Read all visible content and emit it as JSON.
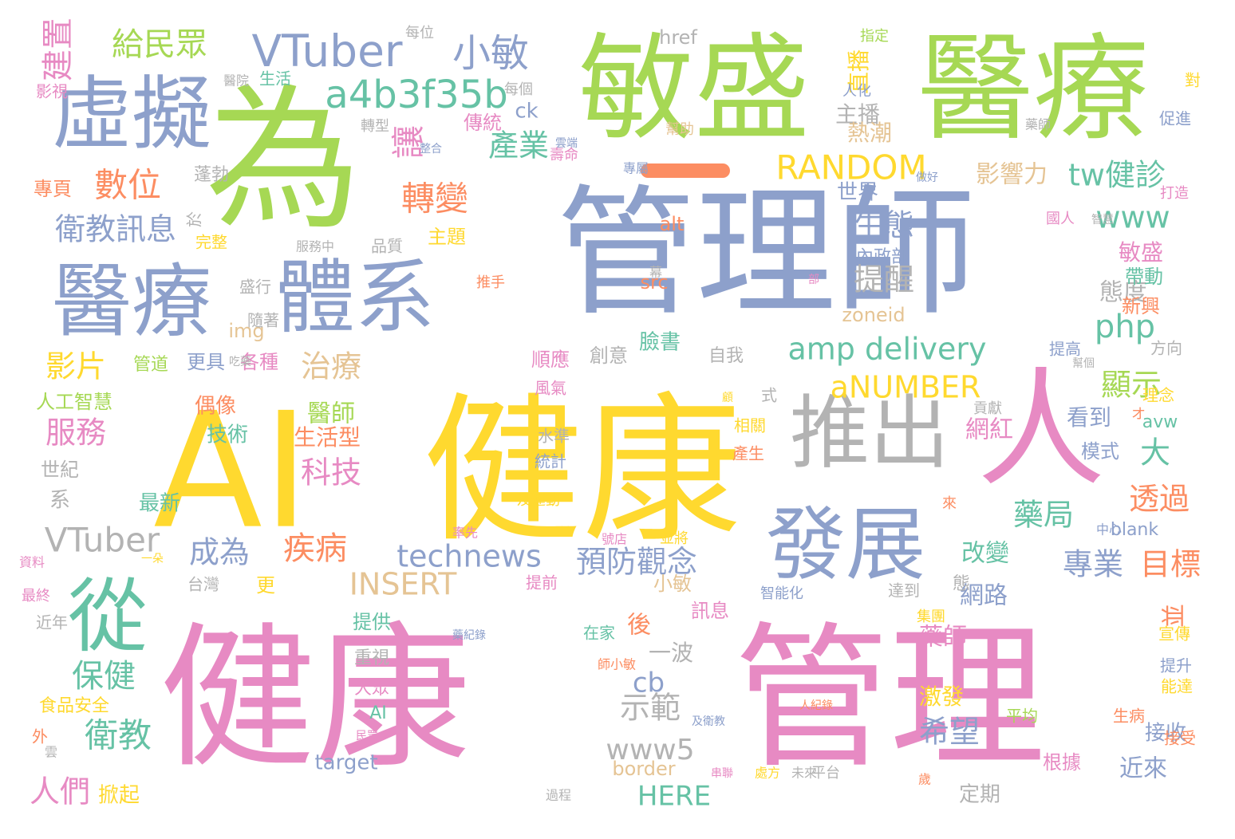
{
  "palette": {
    "pink": "#e78ac3",
    "yellow": "#ffd92f",
    "green": "#a6d854",
    "blue": "#8da0cb",
    "teal": "#66c2a5",
    "orange": "#fc8d62",
    "gray": "#b3b3b3",
    "tan": "#e5c494"
  },
  "words": [
    {
      "text": "健康",
      "color": "pink"
    },
    {
      "text": "管理",
      "color": "pink"
    },
    {
      "text": "AI",
      "color": "yellow"
    },
    {
      "text": "健康",
      "color": "yellow"
    },
    {
      "text": "管理師",
      "color": "blue"
    },
    {
      "text": "為",
      "color": "green"
    },
    {
      "text": "敏盛",
      "color": "green"
    },
    {
      "text": "醫療",
      "color": "green"
    },
    {
      "text": "人",
      "color": "pink"
    },
    {
      "text": "虛擬",
      "color": "blue"
    },
    {
      "text": "醫療",
      "color": "blue"
    },
    {
      "text": "體系",
      "color": "blue"
    },
    {
      "text": "推出",
      "color": "gray"
    },
    {
      "text": "發展",
      "color": "blue"
    },
    {
      "text": "從",
      "color": "teal"
    },
    {
      "text": "VTuber",
      "color": "blue"
    },
    {
      "text": "小敏",
      "color": "blue"
    },
    {
      "text": "給民眾",
      "color": "green"
    },
    {
      "text": "建置",
      "color": "pink"
    },
    {
      "text": "a4b3f35b",
      "color": "teal"
    },
    {
      "text": "數位",
      "color": "orange"
    },
    {
      "text": "衛教訊息",
      "color": "blue"
    },
    {
      "text": "讓",
      "color": "pink"
    },
    {
      "text": "產業",
      "color": "teal"
    },
    {
      "text": "轉變",
      "color": "orange"
    },
    {
      "text": "RANDOM",
      "color": "yellow"
    },
    {
      "text": "tw健診",
      "color": "teal"
    },
    {
      "text": "www",
      "color": "teal"
    },
    {
      "text": "amp delivery",
      "color": "teal"
    },
    {
      "text": "php",
      "color": "teal"
    },
    {
      "text": "生態",
      "color": "blue"
    },
    {
      "text": "提醒",
      "color": "gray"
    },
    {
      "text": "影響力",
      "color": "tan"
    },
    {
      "text": "直播",
      "color": "yellow"
    },
    {
      "text": "主播",
      "color": "gray"
    },
    {
      "text": "熱潮",
      "color": "tan"
    },
    {
      "text": "世界",
      "color": "blue"
    },
    {
      "text": "aNUMBER",
      "color": "yellow"
    },
    {
      "text": "顯示",
      "color": "green"
    },
    {
      "text": "大",
      "color": "teal"
    },
    {
      "text": "態度",
      "color": "gray"
    },
    {
      "text": "影片",
      "color": "yellow"
    },
    {
      "text": "服務",
      "color": "pink"
    },
    {
      "text": "治療",
      "color": "tan"
    },
    {
      "text": "醫師",
      "color": "green"
    },
    {
      "text": "科技",
      "color": "pink"
    },
    {
      "text": "疾病",
      "color": "orange"
    },
    {
      "text": "technews",
      "color": "blue"
    },
    {
      "text": "預防觀念",
      "color": "blue"
    },
    {
      "text": "成為",
      "color": "blue"
    },
    {
      "text": "INSERT",
      "color": "tan"
    },
    {
      "text": "VTuber",
      "color": "gray"
    },
    {
      "text": "專業",
      "color": "blue"
    },
    {
      "text": "目標",
      "color": "orange"
    },
    {
      "text": "藥局",
      "color": "teal"
    },
    {
      "text": "透過",
      "color": "orange"
    },
    {
      "text": "網紅",
      "color": "pink"
    },
    {
      "text": "改變",
      "color": "teal"
    },
    {
      "text": "網路",
      "color": "blue"
    },
    {
      "text": "衛教",
      "color": "teal"
    },
    {
      "text": "保健",
      "color": "teal"
    },
    {
      "text": "人們",
      "color": "pink"
    },
    {
      "text": "示範",
      "color": "gray"
    },
    {
      "text": "www5",
      "color": "gray"
    },
    {
      "text": "HERE",
      "color": "teal"
    },
    {
      "text": "希望",
      "color": "blue"
    },
    {
      "text": "藥師",
      "color": "pink"
    },
    {
      "text": "並",
      "color": "orange"
    },
    {
      "text": "cb",
      "color": "blue"
    },
    {
      "text": "後",
      "color": "orange"
    },
    {
      "text": "一波",
      "color": "gray"
    },
    {
      "text": "近來",
      "color": "blue"
    },
    {
      "text": "激發",
      "color": "yellow"
    },
    {
      "text": "接收",
      "color": "blue"
    },
    {
      "text": "敏盛",
      "color": "pink"
    },
    {
      "text": "帶動",
      "color": "teal"
    },
    {
      "text": "新興",
      "color": "orange"
    },
    {
      "text": "看到",
      "color": "blue"
    },
    {
      "text": "模式",
      "color": "blue"
    },
    {
      "text": "href",
      "color": "gray"
    },
    {
      "text": "ck",
      "color": "blue"
    },
    {
      "text": "傳統",
      "color": "pink"
    },
    {
      "text": "主題",
      "color": "yellow"
    },
    {
      "text": "alt",
      "color": "orange"
    },
    {
      "text": "src",
      "color": "orange"
    },
    {
      "text": "zoneid",
      "color": "tan"
    },
    {
      "text": "img",
      "color": "tan"
    },
    {
      "text": "臉書",
      "color": "teal"
    },
    {
      "text": "創意",
      "color": "gray"
    },
    {
      "text": "順應",
      "color": "pink"
    },
    {
      "text": "自我",
      "color": "gray"
    },
    {
      "text": "偶像",
      "color": "orange"
    },
    {
      "text": "技術",
      "color": "teal"
    },
    {
      "text": "生活型",
      "color": "orange"
    },
    {
      "text": "世紀",
      "color": "gray"
    },
    {
      "text": "系",
      "color": "gray"
    },
    {
      "text": "最新",
      "color": "teal"
    },
    {
      "text": "更具",
      "color": "blue"
    },
    {
      "text": "各種",
      "color": "pink"
    },
    {
      "text": "更",
      "color": "yellow"
    },
    {
      "text": "小敏",
      "color": "tan"
    },
    {
      "text": "訊息",
      "color": "pink"
    },
    {
      "text": "提供",
      "color": "teal"
    },
    {
      "text": "重視",
      "color": "gray"
    },
    {
      "text": "大眾",
      "color": "pink"
    },
    {
      "text": "target",
      "color": "blue"
    },
    {
      "text": "border",
      "color": "tan"
    },
    {
      "text": "定期",
      "color": "gray"
    },
    {
      "text": "根據",
      "color": "pink"
    },
    {
      "text": "掀起",
      "color": "yellow"
    },
    {
      "text": "食品安全",
      "color": "yellow"
    },
    {
      "text": "近年",
      "color": "gray"
    },
    {
      "text": "台灣",
      "color": "gray"
    },
    {
      "text": "人工智慧",
      "color": "green"
    },
    {
      "text": "管道",
      "color": "green"
    },
    {
      "text": "影視",
      "color": "pink"
    },
    {
      "text": "專頁",
      "color": "orange"
    },
    {
      "text": "蓬勃",
      "color": "gray"
    },
    {
      "text": "於",
      "color": "gray"
    },
    {
      "text": "完整",
      "color": "yellow"
    },
    {
      "text": "品質",
      "color": "gray"
    },
    {
      "text": "生活",
      "color": "teal"
    },
    {
      "text": "內政部",
      "color": "blue"
    },
    {
      "text": "blank",
      "color": "blue"
    },
    {
      "text": "avw",
      "color": "teal"
    },
    {
      "text": "態",
      "color": "gray"
    },
    {
      "text": "達到",
      "color": "gray"
    },
    {
      "text": "AI",
      "color": "teal"
    },
    {
      "text": "在家",
      "color": "teal"
    },
    {
      "text": "提前",
      "color": "pink"
    },
    {
      "text": "水準",
      "color": "gray"
    },
    {
      "text": "統計",
      "color": "blue"
    },
    {
      "text": "風氣",
      "color": "pink"
    },
    {
      "text": "相關",
      "color": "yellow"
    },
    {
      "text": "產生",
      "color": "orange"
    },
    {
      "text": "平均",
      "color": "green"
    },
    {
      "text": "生病",
      "color": "orange"
    },
    {
      "text": "提升",
      "color": "blue"
    },
    {
      "text": "能達",
      "color": "yellow"
    },
    {
      "text": "接受",
      "color": "orange"
    },
    {
      "text": "宣傳",
      "color": "yellow"
    },
    {
      "text": "提高",
      "color": "blue"
    },
    {
      "text": "方向",
      "color": "gray"
    },
    {
      "text": "理念",
      "color": "yellow"
    },
    {
      "text": "促進",
      "color": "blue"
    },
    {
      "text": "對",
      "color": "yellow"
    },
    {
      "text": "指定",
      "color": "green"
    },
    {
      "text": "每位",
      "color": "gray"
    },
    {
      "text": "每個",
      "color": "gray"
    },
    {
      "text": "國人",
      "color": "pink"
    },
    {
      "text": "打造",
      "color": "pink"
    },
    {
      "text": "人化",
      "color": "blue"
    },
    {
      "text": "轉型",
      "color": "gray"
    },
    {
      "text": "壽命",
      "color": "pink"
    },
    {
      "text": "幫助",
      "color": "tan"
    },
    {
      "text": "式",
      "color": "gray"
    },
    {
      "text": "推手",
      "color": "orange"
    },
    {
      "text": "盛行",
      "color": "gray"
    },
    {
      "text": "隨著",
      "color": "gray"
    },
    {
      "text": "服務中",
      "color": "gray"
    },
    {
      "text": "醫院",
      "color": "gray"
    },
    {
      "text": "貢獻",
      "color": "gray"
    },
    {
      "text": "集團",
      "color": "yellow"
    },
    {
      "text": "智能化",
      "color": "blue"
    },
    {
      "text": "及運動",
      "color": "yellow"
    },
    {
      "text": "並將",
      "color": "yellow"
    },
    {
      "text": "號店",
      "color": "pink"
    },
    {
      "text": "最終",
      "color": "pink"
    },
    {
      "text": "師小敏",
      "color": "orange"
    },
    {
      "text": "平台",
      "color": "gray"
    },
    {
      "text": "未來",
      "color": "gray"
    },
    {
      "text": "處方",
      "color": "yellow"
    },
    {
      "text": "民眾",
      "color": "pink"
    },
    {
      "text": "過程",
      "color": "gray"
    },
    {
      "text": "外",
      "color": "orange"
    },
    {
      "text": "資料",
      "color": "pink"
    },
    {
      "text": "來",
      "color": "orange"
    },
    {
      "text": "中心",
      "color": "blue"
    },
    {
      "text": "歲",
      "color": "orange"
    },
    {
      "text": "雲",
      "color": "gray"
    },
    {
      "text": "一朵",
      "color": "yellow"
    },
    {
      "text": "幕",
      "color": "gray"
    },
    {
      "text": "整合",
      "color": "blue"
    },
    {
      "text": "專屬",
      "color": "blue"
    },
    {
      "text": "吃藥",
      "color": "gray"
    },
    {
      "text": "及衛教",
      "color": "blue"
    },
    {
      "text": "率先",
      "color": "pink"
    },
    {
      "text": "做好",
      "color": "blue"
    },
    {
      "text": "智慧",
      "color": "gray"
    },
    {
      "text": "部",
      "color": "pink"
    },
    {
      "text": "藥師",
      "color": "gray"
    },
    {
      "text": "幫個",
      "color": "gray"
    },
    {
      "text": "顧",
      "color": "yellow"
    },
    {
      "text": "人紀錄",
      "color": "orange"
    },
    {
      "text": "藥紀錄",
      "color": "blue"
    },
    {
      "text": "串聯",
      "color": "pink"
    },
    {
      "text": "雲端",
      "color": "blue"
    },
    {
      "text": "オ",
      "color": "orange"
    }
  ]
}
